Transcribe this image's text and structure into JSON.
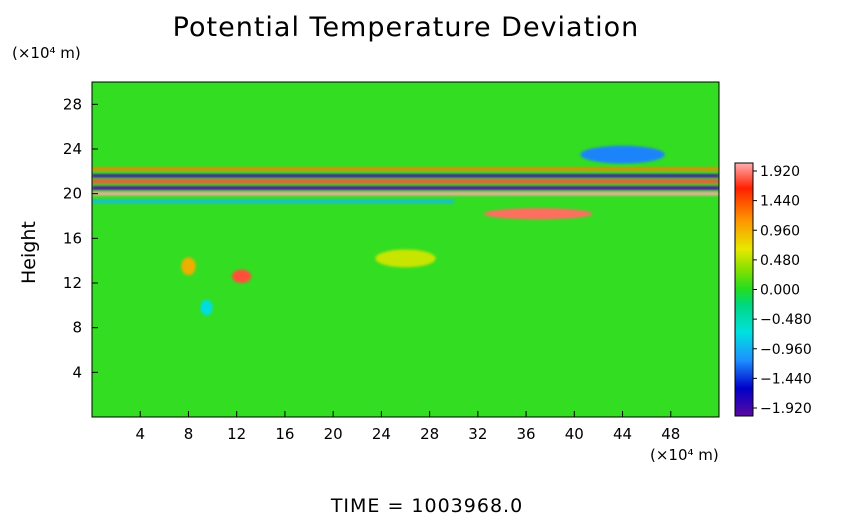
{
  "chart_data": {
    "type": "heatmap",
    "title": "Potential Temperature Deviation",
    "ylabel": "Height",
    "y_unit": "(×10⁴ m)",
    "x_unit": "(×10⁴ m)",
    "xlim": [
      0,
      52
    ],
    "ylim": [
      0,
      30
    ],
    "x_ticks": [
      4,
      8,
      12,
      16,
      20,
      24,
      28,
      32,
      36,
      40,
      44,
      48
    ],
    "y_ticks": [
      4,
      8,
      12,
      16,
      20,
      24,
      28
    ],
    "colorbar": {
      "labels": [
        "1.920",
        "1.440",
        "0.960",
        "0.480",
        "0.000",
        "−0.480",
        "−0.960",
        "−1.440",
        "−1.920"
      ],
      "range": [
        -1.92,
        1.92
      ]
    },
    "features": [
      {
        "kind": "band",
        "value": -1.9,
        "y": 20.5,
        "thickness": 0.35,
        "x0": 0,
        "x1": 52
      },
      {
        "kind": "band",
        "value": 1.9,
        "y": 20.0,
        "thickness": 0.3,
        "x0": 0,
        "x1": 52
      },
      {
        "kind": "band",
        "value": 1.6,
        "y": 21.1,
        "thickness": 0.35,
        "x0": 0,
        "x1": 52
      },
      {
        "kind": "band",
        "value": -1.8,
        "y": 21.6,
        "thickness": 0.3,
        "x0": 0,
        "x1": 52
      },
      {
        "kind": "band",
        "value": 1.2,
        "y": 22.2,
        "thickness": 0.3,
        "x0": 0,
        "x1": 52
      },
      {
        "kind": "band",
        "value": -0.7,
        "y": 19.3,
        "thickness": 0.3,
        "x0": 0,
        "x1": 30
      },
      {
        "kind": "blob",
        "value": 1.6,
        "x": 12.4,
        "y": 12.6,
        "rx": 0.8,
        "ry": 0.6
      },
      {
        "kind": "blob",
        "value": 1.1,
        "x": 8.0,
        "y": 13.5,
        "rx": 0.6,
        "ry": 0.8
      },
      {
        "kind": "blob",
        "value": -0.5,
        "x": 9.5,
        "y": 9.8,
        "rx": 0.5,
        "ry": 0.7
      },
      {
        "kind": "blob",
        "value": 1.7,
        "x": 37.0,
        "y": 18.2,
        "rx": 4.5,
        "ry": 0.5
      },
      {
        "kind": "blob",
        "value": 0.8,
        "x": 26.0,
        "y": 14.2,
        "rx": 2.5,
        "ry": 0.8
      },
      {
        "kind": "blob",
        "value": -1.0,
        "x": 44.0,
        "y": 23.5,
        "rx": 3.5,
        "ry": 0.8
      }
    ]
  },
  "time_label": "TIME  =  1003968.0"
}
